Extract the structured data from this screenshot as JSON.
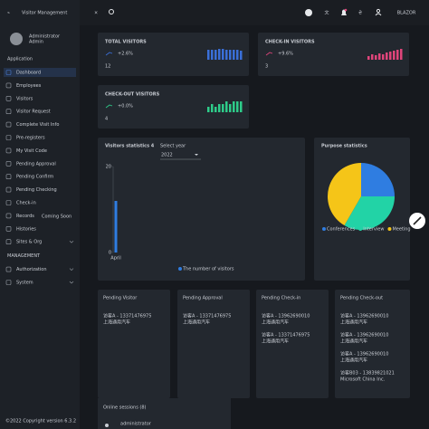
{
  "sidebar": {
    "brand": "Visitor Management",
    "user": {
      "name": "Administrator",
      "role": "Admin"
    },
    "sections": [
      {
        "title": "Application",
        "items": [
          "Dashboard",
          "Employees",
          "Visitors",
          "Visitor Request",
          "Complete Visit Info",
          "Pre-registers",
          "My Visit Code",
          "Pending Approval",
          "Pending Confirm",
          "Pending Checking",
          "Check-in",
          "Records",
          "Histories",
          "Sites & Org"
        ]
      },
      {
        "title": "MANAGEMENT",
        "items": [
          "Authorization",
          "System"
        ]
      }
    ],
    "badge": "Coming Soon",
    "footer": {
      "copyright": "©2022 Copyright",
      "version": "version 6.3.2"
    }
  },
  "header": {
    "brand": "BLAZOR"
  },
  "stats": [
    {
      "title": "TOTAL VISITORS",
      "change": "+2.6%",
      "value": 12
    },
    {
      "title": "CHECK-IN VISITORS",
      "change": "+9.6%",
      "value": 3
    },
    {
      "title": "CHECK-OUT VISITORS",
      "change": "+0.0%",
      "value": 4
    }
  ],
  "select": {
    "label": "Select year",
    "value": "2022"
  },
  "chart_data": [
    {
      "type": "sparkbar",
      "color": "#3a6fd8",
      "values": [
        11,
        11,
        11,
        12,
        12,
        11,
        11,
        11,
        11,
        10
      ]
    },
    {
      "type": "sparkbar",
      "color": "#e0457b",
      "values": [
        4,
        6,
        5,
        7,
        6,
        8,
        9,
        10,
        11,
        12
      ]
    },
    {
      "type": "sparkbar",
      "color": "#2ecc8a",
      "values": [
        2,
        3,
        2,
        3,
        3,
        4,
        3,
        4,
        4,
        4
      ]
    },
    {
      "type": "bar",
      "title": "Visitors statistics 4",
      "categories": [
        "April"
      ],
      "series": [
        {
          "name": "The number of visitors",
          "color": "#2f7de1",
          "values": [
            12
          ]
        }
      ],
      "ylim": [
        0,
        20
      ],
      "yticks": [
        0,
        20
      ]
    },
    {
      "type": "pie",
      "title": "Purpose statistics",
      "categories": [
        "Conferences",
        "Interview",
        "Meeting"
      ],
      "values": [
        3,
        4,
        5
      ],
      "colors": [
        "#2f7de1",
        "#22d3a6",
        "#f5c518"
      ]
    }
  ],
  "lists": [
    {
      "title": "Pending Visitor",
      "entries": [
        {
          "name": "访客A - 13371476975",
          "company": "上海通用汽车"
        }
      ]
    },
    {
      "title": "Pending Approval",
      "entries": [
        {
          "name": "访客A - 13371476975",
          "company": "上海通用汽车"
        }
      ]
    },
    {
      "title": "Pending Check-in",
      "entries": [
        {
          "name": "访客A - 13962690010",
          "company": "上海通用汽车"
        },
        {
          "name": "访客A - 13371476975",
          "company": "上海通用汽车"
        }
      ]
    },
    {
      "title": "Pending Check-out",
      "entries": [
        {
          "name": "访客A - 13962690010",
          "company": "上海通用汽车"
        },
        {
          "name": "访客A - 13962690010",
          "company": "上海通用汽车"
        },
        {
          "name": "访客A - 13962690010",
          "company": "上海通用汽车"
        },
        {
          "name": "访客B03 - 13839821021",
          "company": "Microsoft China Inc."
        }
      ]
    }
  ],
  "sessions": {
    "title": "Online sessions (8)",
    "user": "administrator"
  }
}
